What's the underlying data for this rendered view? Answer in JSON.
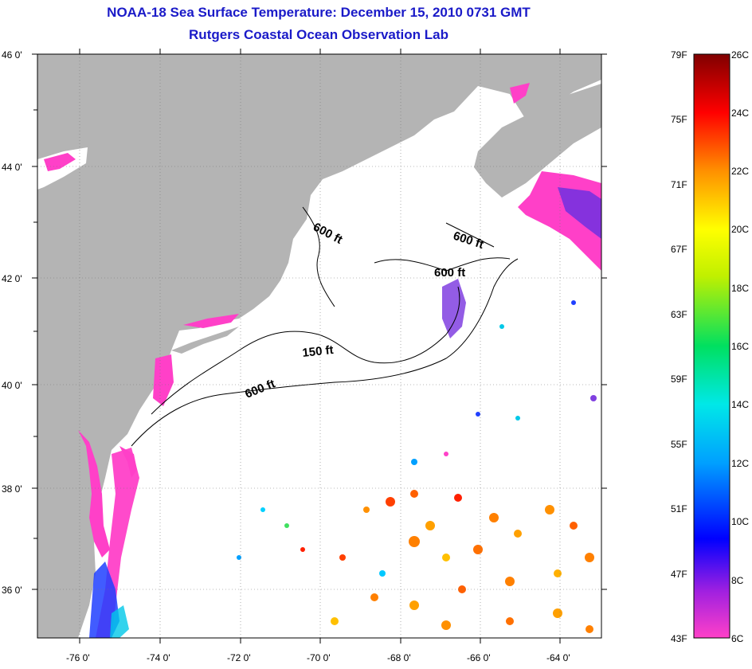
{
  "title": {
    "line1": "NOAA-18 Sea Surface Temperature:  December 15, 2010 0731 GMT",
    "line2": "Rutgers Coastal Ocean Observation Lab"
  },
  "map": {
    "lat_labels": [
      "46 0'",
      "44 0'",
      "42 0'",
      "40 0'",
      "38 0'",
      "36 0'"
    ],
    "lon_labels": [
      "-76 0'",
      "-74 0'",
      "-72 0'",
      "-70 0'",
      "-68 0'",
      "-66 0'",
      "-64 0'"
    ],
    "contour_labels": [
      "600 ft",
      "600 ft",
      "600 ft",
      "150 ft",
      "600 ft"
    ]
  },
  "colorbar": {
    "f_labels": [
      "79F",
      "75F",
      "71F",
      "67F",
      "63F",
      "59F",
      "55F",
      "51F",
      "47F",
      "43F"
    ],
    "c_labels": [
      "26C",
      "24C",
      "22C",
      "20C",
      "18C",
      "16C",
      "14C",
      "12C",
      "10C",
      "8C",
      "6C"
    ],
    "colors": [
      "#ff40c8",
      "#9020e0",
      "#0000ff",
      "#00a0ff",
      "#00e8e8",
      "#00e060",
      "#c0f000",
      "#ffff00",
      "#ff9000",
      "#ff0000",
      "#800000"
    ]
  },
  "colors": {
    "land": "#b4b4b4",
    "sea": "#ffffff",
    "title": "#1a1ac8"
  }
}
